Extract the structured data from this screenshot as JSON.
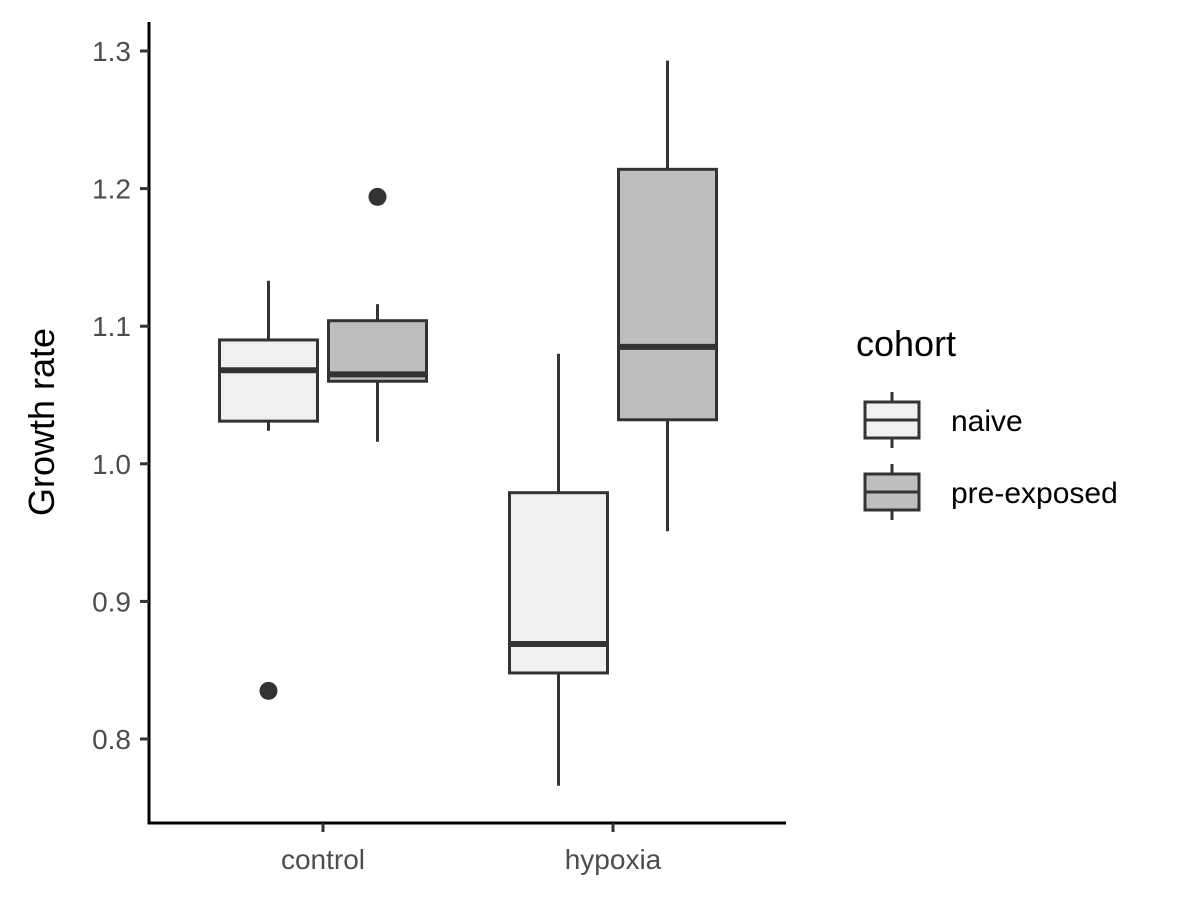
{
  "chart_data": {
    "type": "box",
    "title": "",
    "xlabel": "",
    "ylabel": "Growth rate",
    "ylim": [
      0.74,
      1.32
    ],
    "y_ticks": [
      "0.8",
      "0.9",
      "1.0",
      "1.1",
      "1.2",
      "1.3"
    ],
    "categories": [
      "control",
      "hypoxia"
    ],
    "grid": false,
    "legend": {
      "title": "cohort",
      "placement": "right"
    },
    "series": [
      {
        "name": "naive",
        "color": "#f0f0f0",
        "boxes": [
          {
            "category": "control",
            "whisker_low": 1.024,
            "q1": 1.031,
            "median": 1.068,
            "q3": 1.09,
            "whisker_high": 1.133,
            "outliers": [
              0.835
            ]
          },
          {
            "category": "hypoxia",
            "whisker_low": 0.766,
            "q1": 0.848,
            "median": 0.869,
            "q3": 0.979,
            "whisker_high": 1.08,
            "outliers": []
          }
        ]
      },
      {
        "name": "pre-exposed",
        "color": "#bebebe",
        "boxes": [
          {
            "category": "control",
            "whisker_low": 1.016,
            "q1": 1.06,
            "median": 1.065,
            "q3": 1.104,
            "whisker_high": 1.116,
            "outliers": [
              1.194
            ]
          },
          {
            "category": "hypoxia",
            "whisker_low": 0.951,
            "q1": 1.032,
            "median": 1.085,
            "q3": 1.214,
            "whisker_high": 1.293,
            "outliers": []
          }
        ]
      }
    ]
  }
}
